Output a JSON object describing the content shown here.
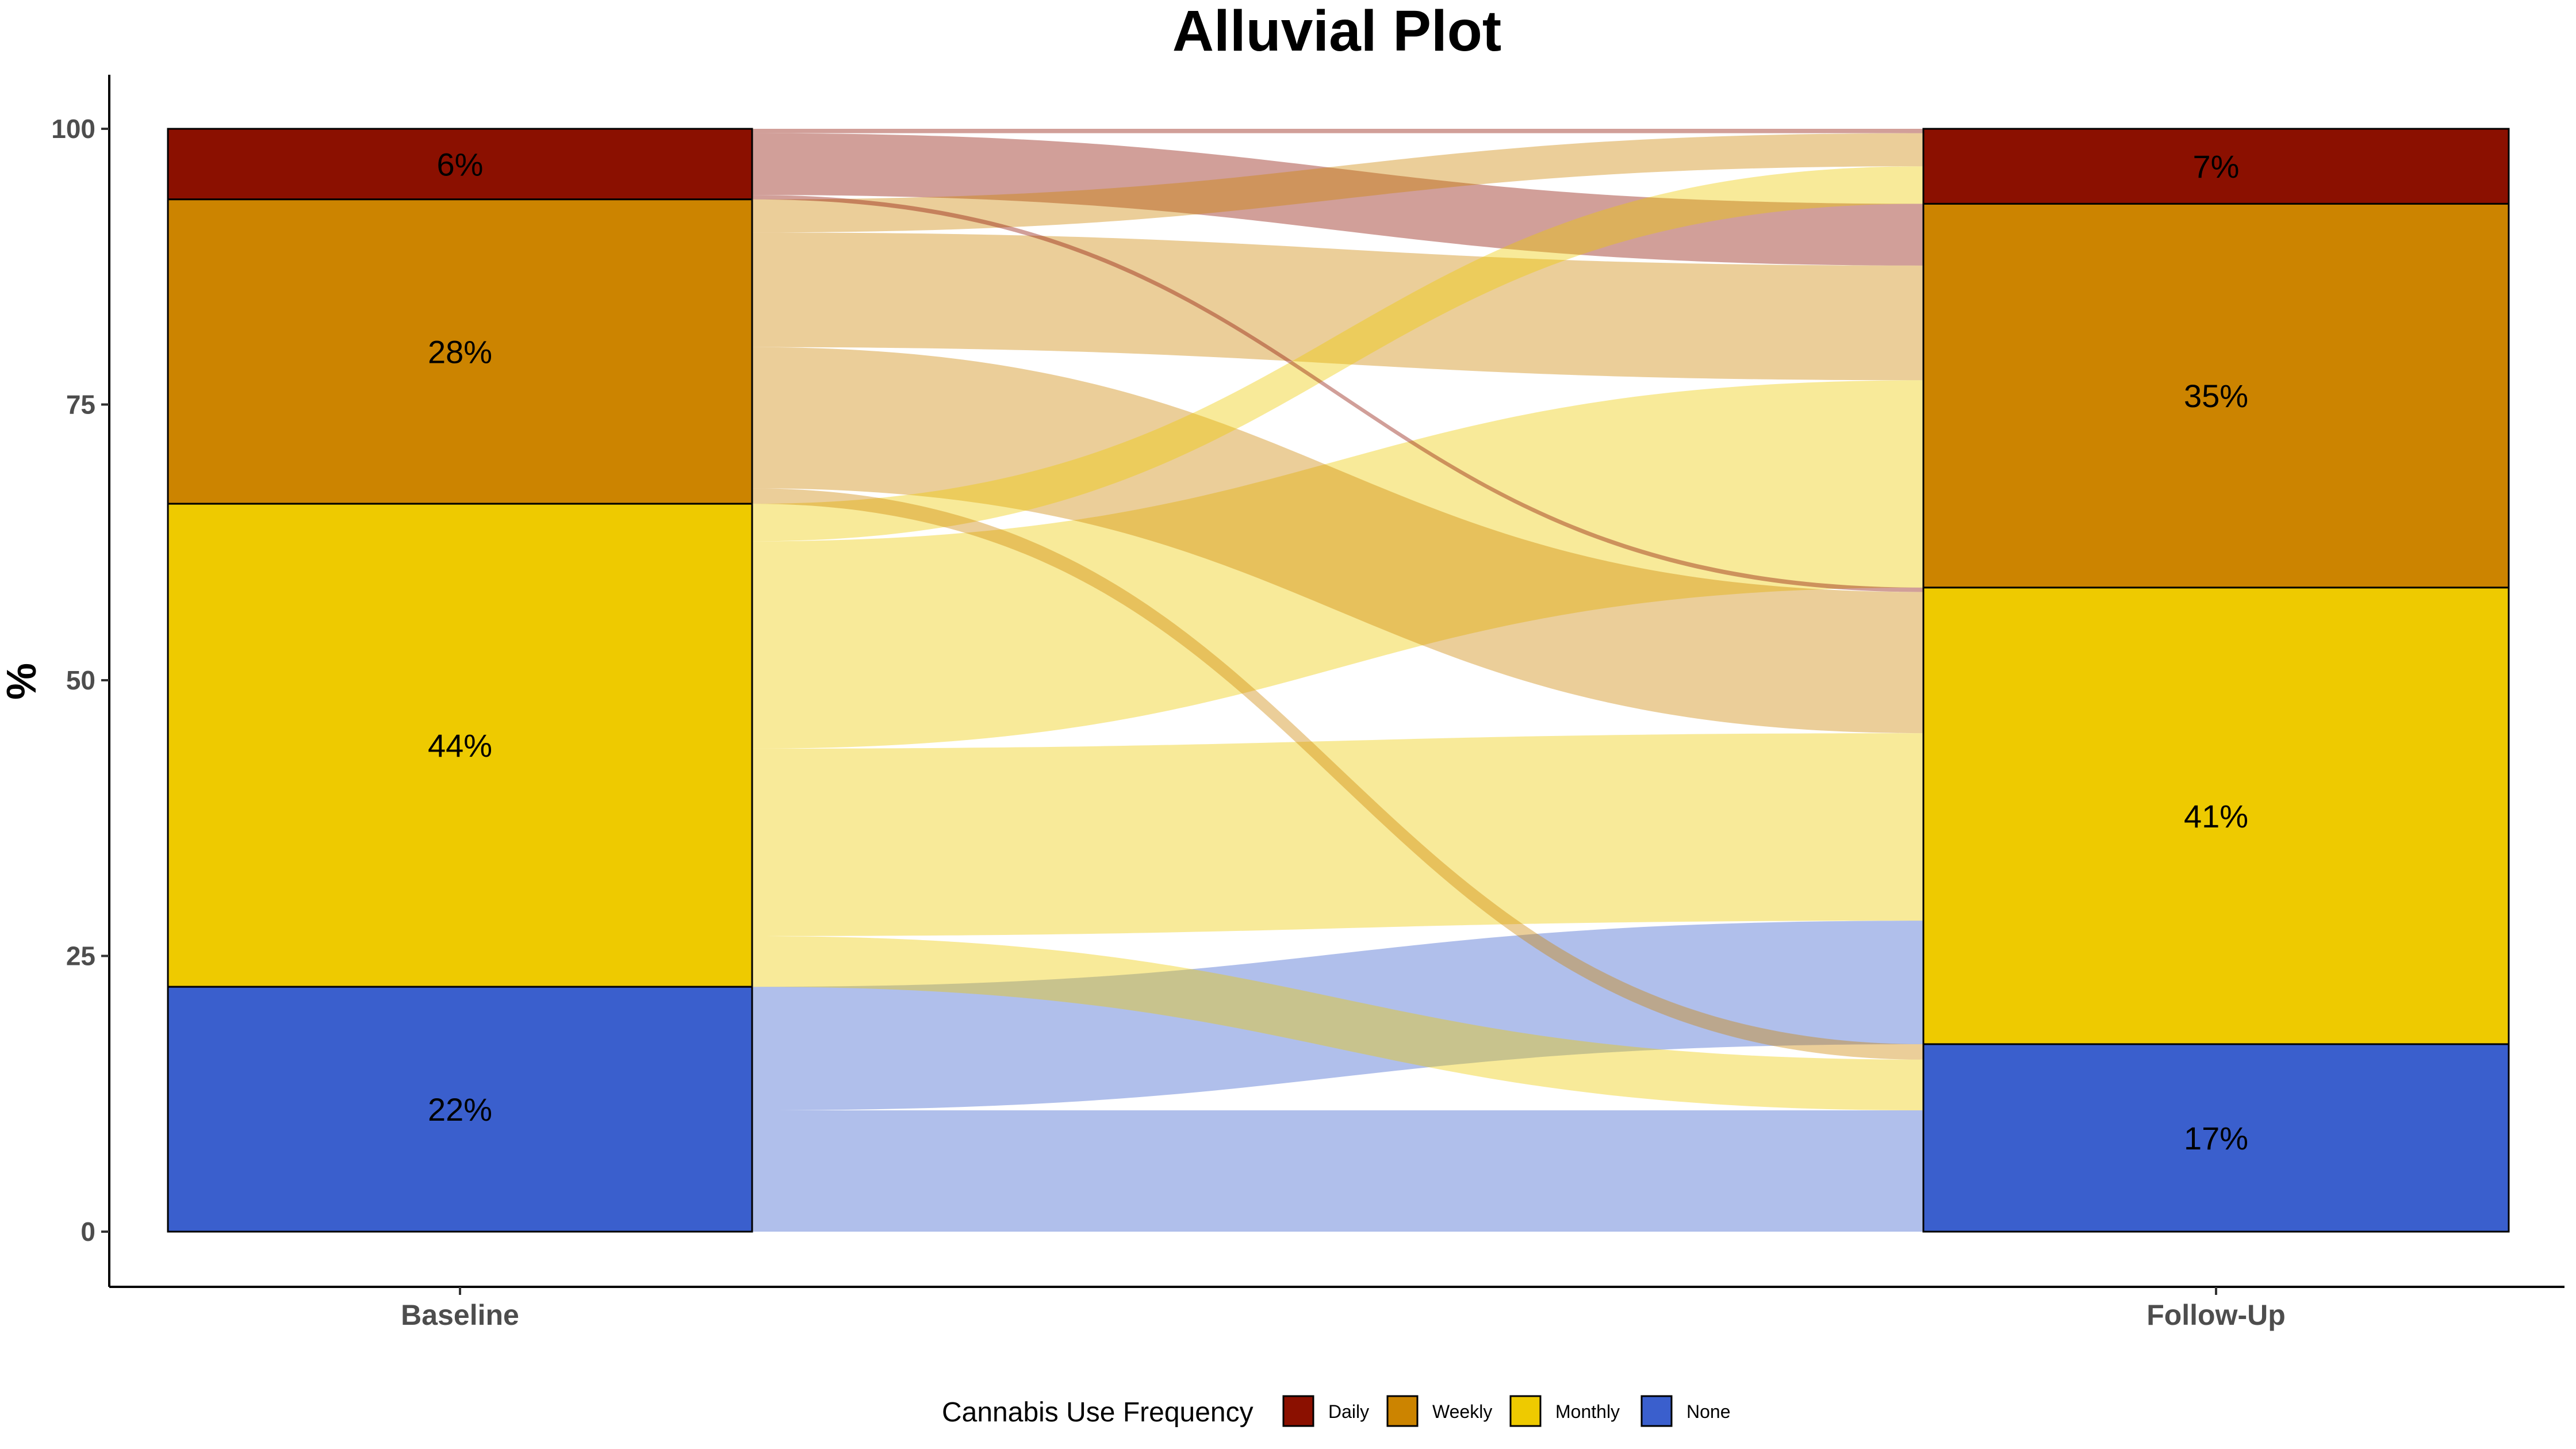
{
  "chart_data": {
    "type": "alluvial",
    "title": "Alluvial Plot",
    "ylabel": "%",
    "ylim": [
      0,
      100
    ],
    "yticks": [
      0,
      25,
      50,
      75,
      100
    ],
    "x": [
      "Baseline",
      "Follow-Up"
    ],
    "grid": false,
    "legend": {
      "title": "Cannabis Use Frequency",
      "position": "bottom",
      "entries": [
        "Daily",
        "Weekly",
        "Monthly",
        "None"
      ]
    },
    "categories": [
      "Daily",
      "Weekly",
      "Monthly",
      "None"
    ],
    "colors": {
      "Daily": "#8B1000",
      "Weekly": "#CC8400",
      "Monthly": "#EECA00",
      "None": "#3A5FCD"
    },
    "strata": {
      "Baseline": [
        {
          "category": "Daily",
          "value": 6.4,
          "label": "6%"
        },
        {
          "category": "Weekly",
          "value": 27.6,
          "label": "28%"
        },
        {
          "category": "Monthly",
          "value": 43.8,
          "label": "44%"
        },
        {
          "category": "None",
          "value": 22.2,
          "label": "22%"
        }
      ],
      "Follow-Up": [
        {
          "category": "Daily",
          "value": 6.8,
          "label": "7%"
        },
        {
          "category": "Weekly",
          "value": 34.8,
          "label": "35%"
        },
        {
          "category": "Monthly",
          "value": 41.4,
          "label": "41%"
        },
        {
          "category": "None",
          "value": 17.0,
          "label": "17%"
        }
      ]
    },
    "flows": [
      {
        "from": "Daily",
        "to": "Daily",
        "value": 0.4
      },
      {
        "from": "Daily",
        "to": "Weekly",
        "value": 5.6
      },
      {
        "from": "Daily",
        "to": "Monthly",
        "value": 0.4
      },
      {
        "from": "Weekly",
        "to": "Daily",
        "value": 3.0
      },
      {
        "from": "Weekly",
        "to": "Weekly",
        "value": 10.4
      },
      {
        "from": "Weekly",
        "to": "Monthly",
        "value": 12.8
      },
      {
        "from": "Weekly",
        "to": "None",
        "value": 1.4
      },
      {
        "from": "Monthly",
        "to": "Daily",
        "value": 3.4
      },
      {
        "from": "Monthly",
        "to": "Weekly",
        "value": 18.8
      },
      {
        "from": "Monthly",
        "to": "Monthly",
        "value": 17.0
      },
      {
        "from": "Monthly",
        "to": "None",
        "value": 4.6
      },
      {
        "from": "None",
        "to": "Weekly",
        "value": 0.0
      },
      {
        "from": "None",
        "to": "Monthly",
        "value": 11.2
      },
      {
        "from": "None",
        "to": "None",
        "value": 11.0
      }
    ]
  }
}
